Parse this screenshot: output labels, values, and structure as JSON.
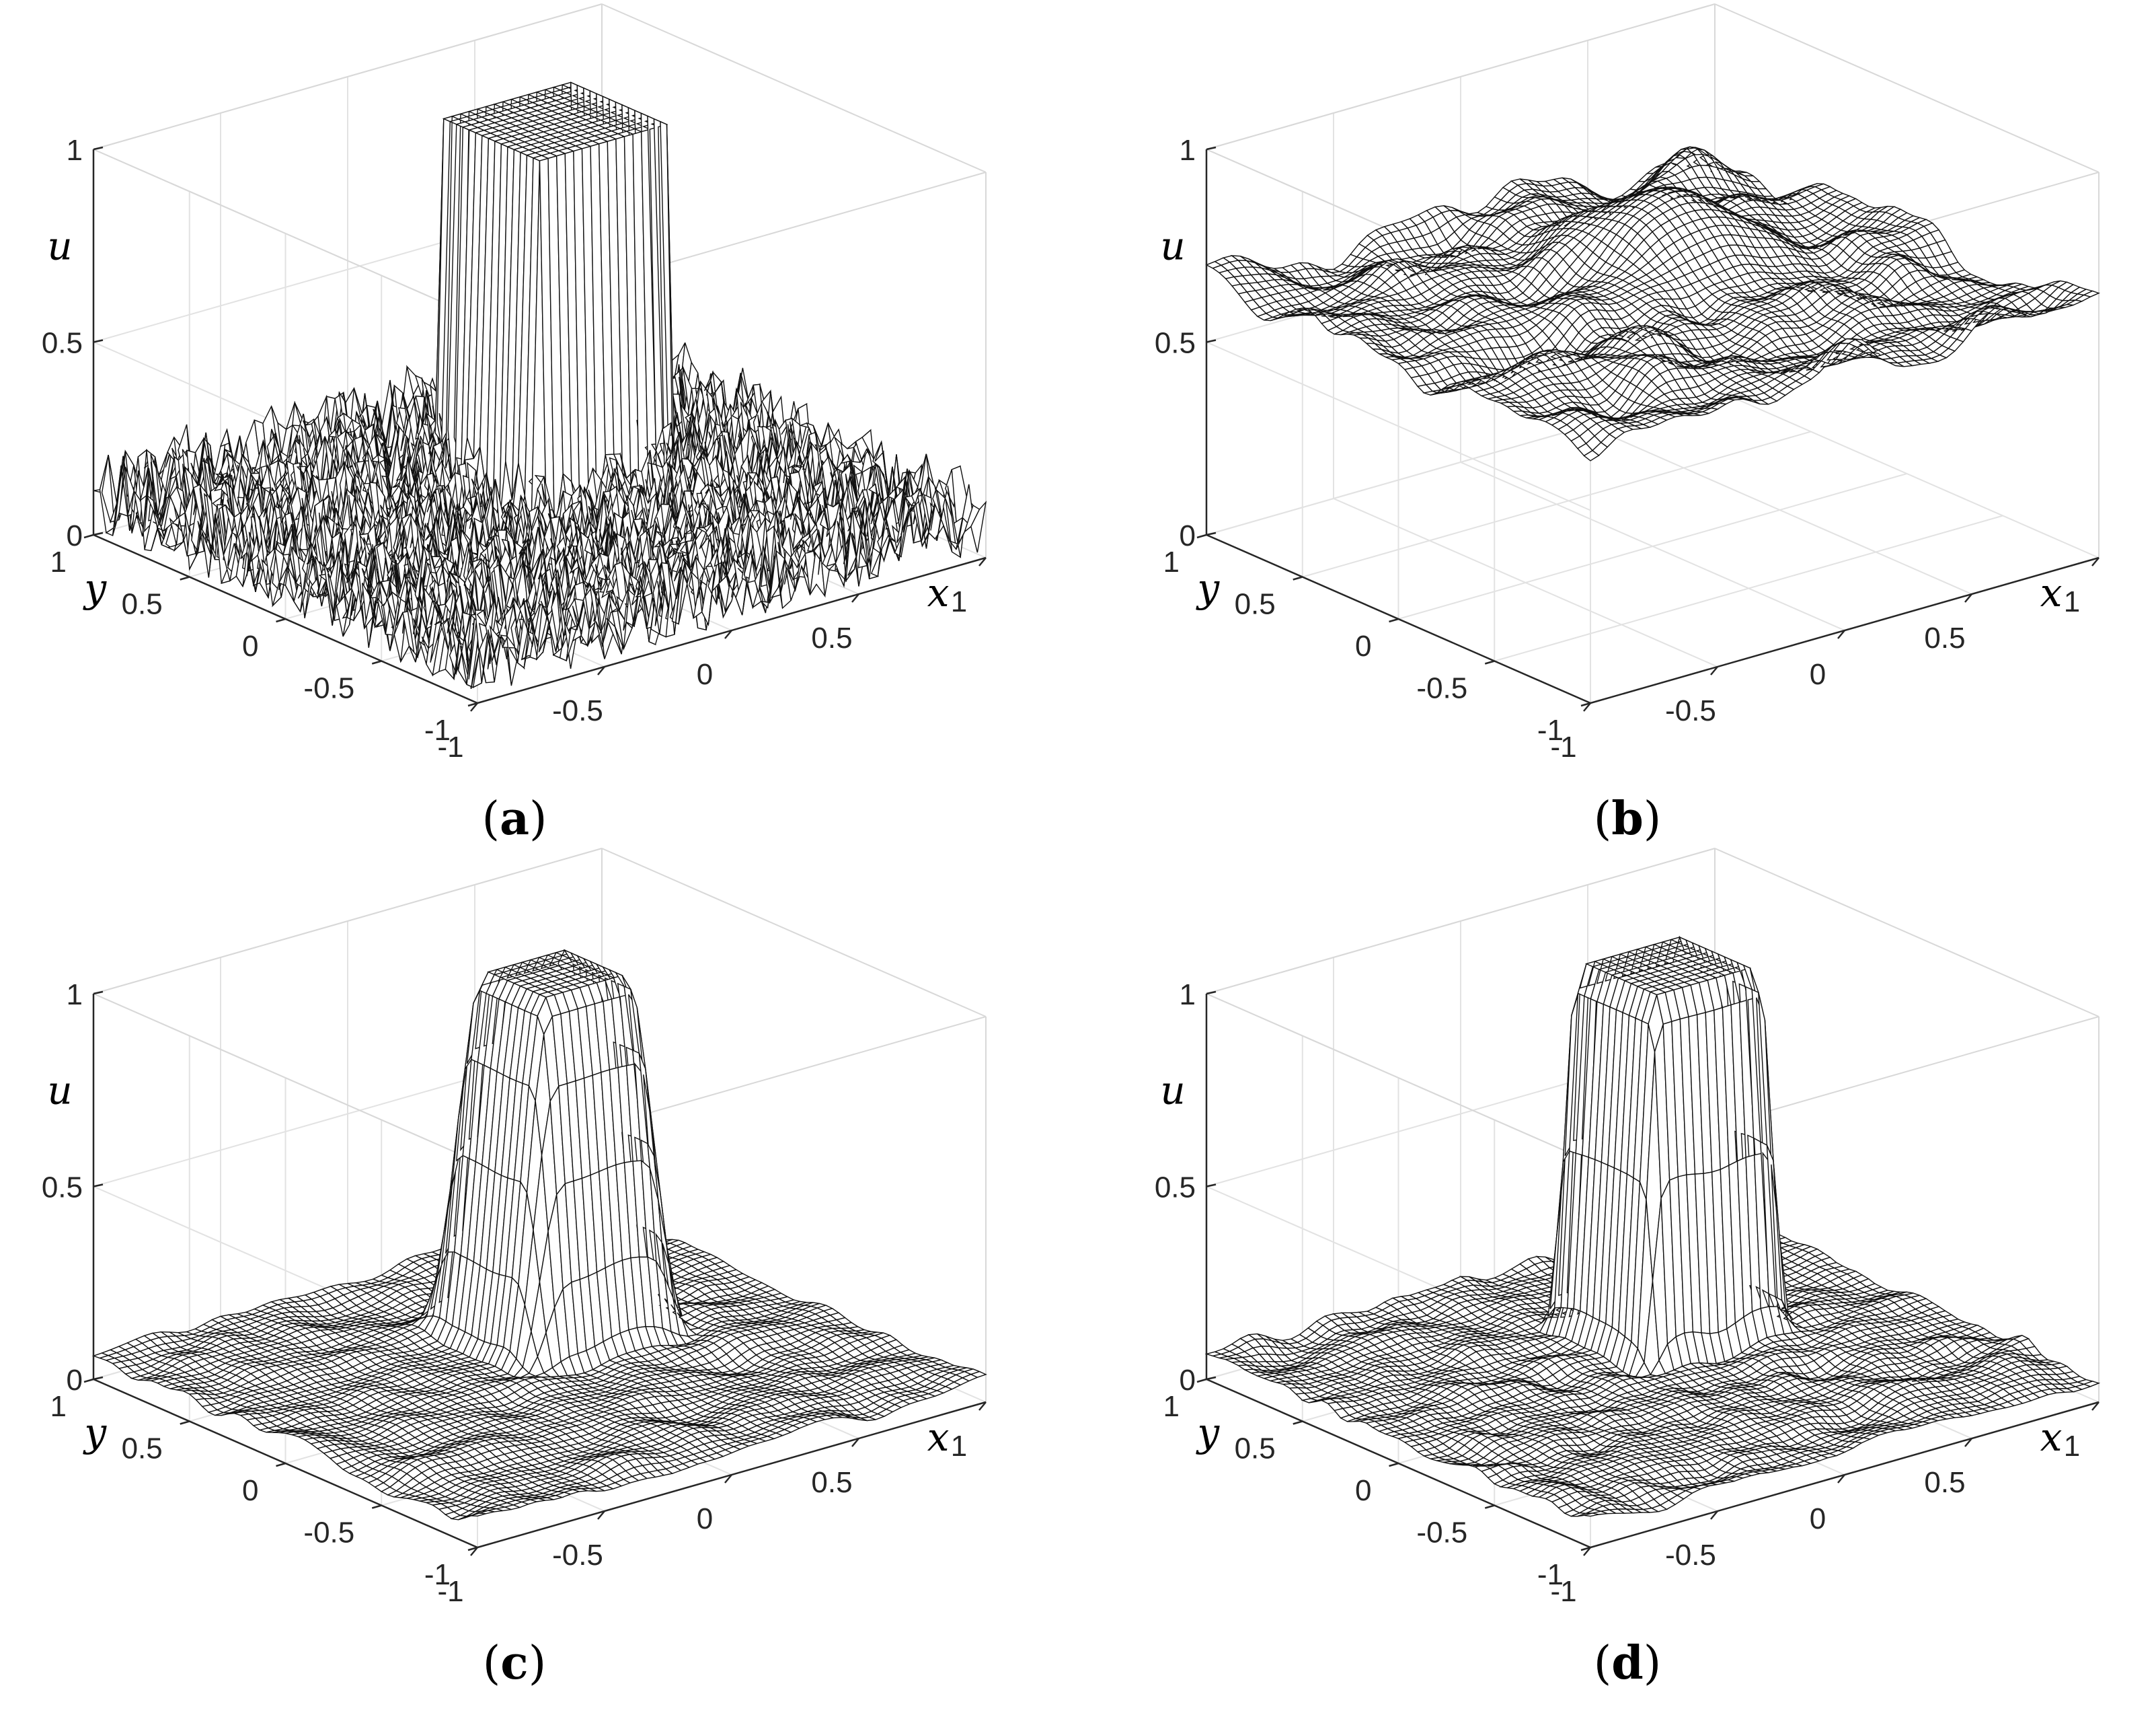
{
  "chart_data": [
    {
      "type": "surface",
      "panel": "a",
      "caption_label": "a",
      "xlabel": "x",
      "ylabel": "y",
      "zlabel": "u",
      "xlim": [
        -1,
        1
      ],
      "ylim": [
        -1,
        1
      ],
      "zlim": [
        0,
        1
      ],
      "xticks": [
        "-1",
        "-0.5",
        "0",
        "0.5",
        "1"
      ],
      "yticks": [
        "-1",
        "-0.5",
        "0",
        "0.5",
        "1"
      ],
      "zticks": [
        "0",
        "0.5",
        "1"
      ],
      "surface": {
        "description_model": "box plus noise",
        "box_x_range": [
          0.0,
          0.5
        ],
        "box_y_range": [
          0.0,
          0.5
        ],
        "box_height": 1.0,
        "background_level": 0.1,
        "background_noise_amplitude": 0.12,
        "smoothing": "none"
      },
      "grid": true
    },
    {
      "type": "surface",
      "panel": "b",
      "caption_label": "b",
      "xlabel": "x",
      "ylabel": "y",
      "zlabel": "u",
      "xlim": [
        -1,
        1
      ],
      "ylim": [
        -1,
        1
      ],
      "zlim": [
        0,
        1
      ],
      "xticks": [
        "-1",
        "-0.5",
        "0",
        "0.5",
        "1"
      ],
      "yticks": [
        "-1",
        "-0.5",
        "0",
        "0.5",
        "1"
      ],
      "zticks": [
        "0",
        "0.5",
        "1"
      ],
      "surface": {
        "description_model": "raised smooth wavy surface with mild bump",
        "box_x_range": [
          0.0,
          0.5
        ],
        "box_y_range": [
          0.0,
          0.5
        ],
        "box_height": 0.82,
        "background_level": 0.65,
        "background_noise_amplitude": 0.1,
        "smoothing": "strong"
      },
      "grid": true
    },
    {
      "type": "surface",
      "panel": "c",
      "caption_label": "c",
      "xlabel": "x",
      "ylabel": "y",
      "zlabel": "u",
      "xlim": [
        -1,
        1
      ],
      "ylim": [
        -1,
        1
      ],
      "zlim": [
        0,
        1
      ],
      "xticks": [
        "-1",
        "-0.5",
        "0",
        "0.5",
        "1"
      ],
      "yticks": [
        "-1",
        "-0.5",
        "0",
        "0.5",
        "1"
      ],
      "zticks": [
        "0",
        "0.5",
        "1"
      ],
      "surface": {
        "description_model": "box plus small smooth ripples",
        "box_x_range": [
          0.0,
          0.5
        ],
        "box_y_range": [
          0.0,
          0.5
        ],
        "box_height": 0.98,
        "background_level": 0.06,
        "background_noise_amplitude": 0.03,
        "smoothing": "medium"
      },
      "grid": true
    },
    {
      "type": "surface",
      "panel": "d",
      "caption_label": "d",
      "xlabel": "x",
      "ylabel": "y",
      "zlabel": "u",
      "xlim": [
        -1,
        1
      ],
      "ylim": [
        -1,
        1
      ],
      "zlim": [
        0,
        1
      ],
      "xticks": [
        "-1",
        "-0.5",
        "0",
        "0.5",
        "1"
      ],
      "yticks": [
        "-1",
        "-0.5",
        "0",
        "0.5",
        "1"
      ],
      "zticks": [
        "0",
        "0.5",
        "1"
      ],
      "surface": {
        "description_model": "sharper box plus small smooth ripples",
        "box_x_range": [
          0.0,
          0.5
        ],
        "box_y_range": [
          0.0,
          0.5
        ],
        "box_height": 1.0,
        "background_level": 0.06,
        "background_noise_amplitude": 0.03,
        "smoothing": "light"
      },
      "grid": true
    }
  ]
}
